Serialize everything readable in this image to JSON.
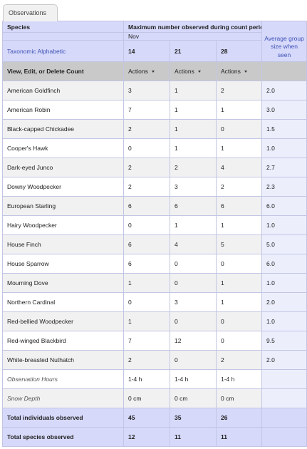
{
  "tab": {
    "label": "Observations"
  },
  "header": {
    "species": "Species",
    "max_observed": "Maximum number observed during count period",
    "month": "Nov",
    "taxonomic": "Taxonomic Alphabetic",
    "dates": [
      "14",
      "21",
      "28"
    ],
    "average_group_size": "Average group size when seen"
  },
  "actions_row": {
    "label": "View, Edit, or Delete Count",
    "buttons": [
      "Actions",
      "Actions",
      "Actions"
    ]
  },
  "species_rows": [
    {
      "name": "American Goldfinch",
      "counts": [
        "3",
        "1",
        "2"
      ],
      "avg": "2.0"
    },
    {
      "name": "American Robin",
      "counts": [
        "7",
        "1",
        "1"
      ],
      "avg": "3.0"
    },
    {
      "name": "Black-capped Chickadee",
      "counts": [
        "2",
        "1",
        "0"
      ],
      "avg": "1.5"
    },
    {
      "name": "Cooper's Hawk",
      "counts": [
        "0",
        "1",
        "1"
      ],
      "avg": "1.0"
    },
    {
      "name": "Dark-eyed Junco",
      "counts": [
        "2",
        "2",
        "4"
      ],
      "avg": "2.7"
    },
    {
      "name": "Downy Woodpecker",
      "counts": [
        "2",
        "3",
        "2"
      ],
      "avg": "2.3"
    },
    {
      "name": "European Starling",
      "counts": [
        "6",
        "6",
        "6"
      ],
      "avg": "6.0"
    },
    {
      "name": "Hairy Woodpecker",
      "counts": [
        "0",
        "1",
        "1"
      ],
      "avg": "1.0"
    },
    {
      "name": "House Finch",
      "counts": [
        "6",
        "4",
        "5"
      ],
      "avg": "5.0"
    },
    {
      "name": "House Sparrow",
      "counts": [
        "6",
        "0",
        "0"
      ],
      "avg": "6.0"
    },
    {
      "name": "Mourning Dove",
      "counts": [
        "1",
        "0",
        "1"
      ],
      "avg": "1.0"
    },
    {
      "name": "Northern Cardinal",
      "counts": [
        "0",
        "3",
        "1"
      ],
      "avg": "2.0"
    },
    {
      "name": "Red-bellied Woodpecker",
      "counts": [
        "1",
        "0",
        "0"
      ],
      "avg": "1.0"
    },
    {
      "name": "Red-winged Blackbird",
      "counts": [
        "7",
        "12",
        "0"
      ],
      "avg": "9.5"
    },
    {
      "name": "White-breasted Nuthatch",
      "counts": [
        "2",
        "0",
        "2"
      ],
      "avg": "2.0"
    }
  ],
  "observation_hours": {
    "label": "Observation Hours",
    "values": [
      "1-4 h",
      "1-4 h",
      "1-4 h"
    ]
  },
  "snow_depth": {
    "label": "Snow Depth",
    "values": [
      "0 cm",
      "0 cm",
      "0 cm"
    ]
  },
  "totals": {
    "individuals": {
      "label": "Total individuals observed",
      "values": [
        "45",
        "35",
        "26"
      ]
    },
    "species": {
      "label": "Total species observed",
      "values": [
        "12",
        "11",
        "11"
      ]
    }
  }
}
